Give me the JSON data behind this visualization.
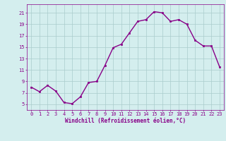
{
  "x": [
    0,
    1,
    2,
    3,
    4,
    5,
    6,
    7,
    8,
    9,
    10,
    11,
    12,
    13,
    14,
    15,
    16,
    17,
    18,
    19,
    20,
    21,
    22,
    23
  ],
  "y": [
    8.0,
    7.2,
    8.3,
    7.3,
    5.3,
    5.1,
    6.3,
    8.8,
    9.0,
    11.8,
    14.9,
    15.5,
    17.5,
    19.5,
    19.8,
    21.2,
    21.0,
    19.5,
    19.8,
    19.0,
    16.2,
    15.2,
    15.2,
    11.5
  ],
  "line_color": "#880088",
  "marker": "s",
  "marker_size": 1.8,
  "bg_color": "#d4eeee",
  "grid_color": "#aacccc",
  "ylabel_ticks": [
    5,
    7,
    9,
    11,
    13,
    15,
    17,
    19,
    21
  ],
  "ylim": [
    4.0,
    22.5
  ],
  "xlim": [
    -0.5,
    23.5
  ],
  "xlabel": "Windchill (Refroidissement éolien,°C)",
  "xlabel_fontsize": 5.5,
  "tick_fontsize": 5.0,
  "line_width": 1.0
}
